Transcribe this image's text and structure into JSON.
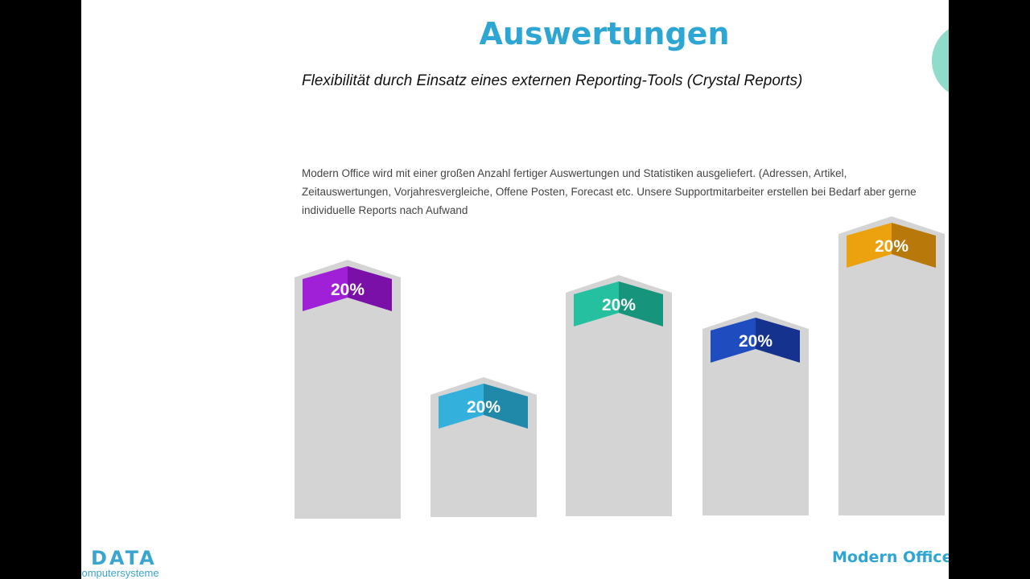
{
  "title": "Auswertungen",
  "subtitle": "Flexibilität durch Einsatz eines externen Reporting-Tools (Crystal Reports)",
  "body": "Modern Office wird mit einer großen Anzahl fertiger Auswertungen und Statistiken ausgeliefert. (Adressen, Artikel, Zeitauswertungen, Vorjahresvergleiche, Offene Posten, Forecast etc. Unsere Supportmitarbeiter erstellen bei Bedarf aber gerne individuelle  Reports nach Aufwand",
  "logo": {
    "text": "DATA",
    "subtitle": "computersysteme"
  },
  "brand": "Modern Office",
  "columns": [
    {
      "label": "20%",
      "color": "#a020d8",
      "shade": "#7a10a8"
    },
    {
      "label": "20%",
      "color": "#34b0dc",
      "shade": "#2088a8"
    },
    {
      "label": "20%",
      "color": "#25c0a0",
      "shade": "#17957c"
    },
    {
      "label": "20%",
      "color": "#1f4dbf",
      "shade": "#15328f"
    },
    {
      "label": "20%",
      "color": "#eba20e",
      "shade": "#b8780a"
    }
  ]
}
